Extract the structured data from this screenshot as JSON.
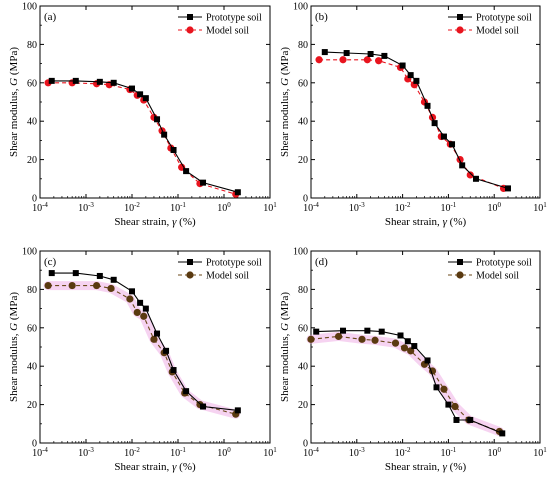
{
  "figure": {
    "xlabel_text": "Shear strain, ",
    "xlabel_gamma": "γ",
    "xlabel_unit": " (%)",
    "ylabel_text": "Shear modulus, ",
    "ylabel_G": "G",
    "ylabel_unit": " (MPa)"
  },
  "colors": {
    "prototype": "#000000",
    "model_red": "#e8141e",
    "model_brown": "#5a3a10",
    "model_dash_brown": "#6b4a1a",
    "highlight": "#ec9ddf"
  },
  "chart_data": [
    {
      "type": "line",
      "panel_label": "(a)",
      "xscale": "log",
      "xlim": [
        0.0001,
        10
      ],
      "ylim": [
        0,
        100
      ],
      "yticks": [
        0,
        20,
        40,
        60,
        80,
        100
      ],
      "xtick_labels": [
        "10-4",
        "10-3",
        "10-2",
        "10-1",
        "100",
        "101"
      ],
      "xlabel": "Shear strain, γ (%)",
      "ylabel": "Shear modulus, G (MPa)",
      "legend_position": "top-right",
      "series": [
        {
          "name": "Prototype soil",
          "marker": "square",
          "color": "#000000",
          "line": "solid",
          "x": [
            0.00018,
            0.0006,
            0.002,
            0.004,
            0.01,
            0.015,
            0.02,
            0.035,
            0.05,
            0.08,
            0.15,
            0.35,
            2.0
          ],
          "y": [
            61,
            61,
            60.5,
            60,
            57,
            54,
            52,
            41,
            33,
            25,
            14,
            8,
            3
          ]
        },
        {
          "name": "Model soil",
          "marker": "circle",
          "color": "#e8141e",
          "line": "dashed",
          "x": [
            0.00015,
            0.0005,
            0.0017,
            0.0032,
            0.009,
            0.013,
            0.018,
            0.03,
            0.045,
            0.07,
            0.12,
            0.3,
            1.8
          ],
          "y": [
            60,
            60,
            59.5,
            59,
            56.5,
            53.5,
            51,
            42,
            35,
            26,
            16,
            7.5,
            2
          ]
        }
      ]
    },
    {
      "type": "line",
      "panel_label": "(b)",
      "xscale": "log",
      "xlim": [
        0.0001,
        10
      ],
      "ylim": [
        0,
        100
      ],
      "yticks": [
        0,
        20,
        40,
        60,
        80,
        100
      ],
      "xtick_labels": [
        "10-4",
        "10-3",
        "10-2",
        "10-1",
        "100",
        "101"
      ],
      "xlabel": "Shear strain, γ (%)",
      "ylabel": "Shear modulus, G (MPa)",
      "legend_position": "top-right",
      "series": [
        {
          "name": "Prototype soil",
          "marker": "square",
          "color": "#000000",
          "line": "solid",
          "x": [
            0.0002,
            0.0006,
            0.002,
            0.004,
            0.01,
            0.015,
            0.02,
            0.035,
            0.05,
            0.08,
            0.12,
            0.2,
            0.4,
            2.0
          ],
          "y": [
            76,
            75.5,
            75,
            74,
            69,
            64,
            61,
            48,
            39,
            32,
            28,
            17,
            10,
            5
          ]
        },
        {
          "name": "Model soil",
          "marker": "circle",
          "color": "#e8141e",
          "line": "dashed",
          "x": [
            0.00015,
            0.0005,
            0.0017,
            0.003,
            0.009,
            0.013,
            0.018,
            0.03,
            0.045,
            0.07,
            0.11,
            0.18,
            0.3,
            1.6
          ],
          "y": [
            72,
            72,
            72,
            71.5,
            68,
            62,
            59,
            50,
            42,
            32,
            28,
            20,
            12,
            5
          ]
        }
      ]
    },
    {
      "type": "line",
      "panel_label": "(c)",
      "xscale": "log",
      "xlim": [
        0.0001,
        10
      ],
      "ylim": [
        0,
        100
      ],
      "yticks": [
        0,
        20,
        40,
        60,
        80,
        100
      ],
      "xtick_labels": [
        "10-4",
        "10-3",
        "10-2",
        "10-1",
        "100",
        "101"
      ],
      "xlabel": "Shear strain, γ (%)",
      "ylabel": "Shear modulus, G (MPa)",
      "legend_position": "top-right",
      "series": [
        {
          "name": "Prototype soil",
          "marker": "square",
          "color": "#000000",
          "line": "solid",
          "x": [
            0.00018,
            0.0006,
            0.002,
            0.004,
            0.01,
            0.015,
            0.02,
            0.035,
            0.055,
            0.08,
            0.15,
            0.35,
            2.0
          ],
          "y": [
            88.5,
            88.5,
            87,
            85,
            79,
            73,
            70,
            57,
            48,
            38,
            27,
            19,
            17
          ]
        },
        {
          "name": "Model soil",
          "marker": "circle",
          "color": "#5a3a10",
          "line": "dashed",
          "x": [
            0.00015,
            0.0005,
            0.0017,
            0.0035,
            0.009,
            0.013,
            0.018,
            0.03,
            0.05,
            0.075,
            0.14,
            0.3,
            1.8
          ],
          "y": [
            82,
            82,
            82,
            80.5,
            75,
            68,
            66,
            54,
            47,
            37,
            26,
            20,
            15
          ]
        }
      ]
    },
    {
      "type": "line",
      "panel_label": "(d)",
      "xscale": "log",
      "xlim": [
        0.0001,
        10
      ],
      "ylim": [
        0,
        100
      ],
      "yticks": [
        0,
        20,
        40,
        60,
        80,
        100
      ],
      "xtick_labels": [
        "10-4",
        "10-3",
        "10-2",
        "10-1",
        "100",
        "101"
      ],
      "xlabel": "Shear strain, γ (%)",
      "ylabel": "Shear modulus, G (MPa)",
      "legend_position": "top-right",
      "series": [
        {
          "name": "Prototype soil",
          "marker": "square",
          "color": "#000000",
          "line": "solid",
          "x": [
            0.00013,
            0.0005,
            0.0017,
            0.0035,
            0.009,
            0.013,
            0.018,
            0.035,
            0.055,
            0.1,
            0.15,
            0.3,
            1.5
          ],
          "y": [
            58,
            58.5,
            58.5,
            58,
            56,
            53,
            50.5,
            43,
            29,
            20,
            12,
            12,
            5
          ]
        },
        {
          "name": "Model soil",
          "marker": "circle",
          "color": "#5a3a10",
          "line": "dashed",
          "x": [
            0.0001,
            0.0004,
            0.0013,
            0.0025,
            0.007,
            0.011,
            0.015,
            0.03,
            0.045,
            0.08,
            0.14,
            0.28,
            1.3
          ],
          "y": [
            54,
            55.5,
            54,
            53.5,
            52,
            49.5,
            48,
            41,
            37.5,
            28,
            19,
            12,
            6
          ]
        }
      ]
    }
  ]
}
